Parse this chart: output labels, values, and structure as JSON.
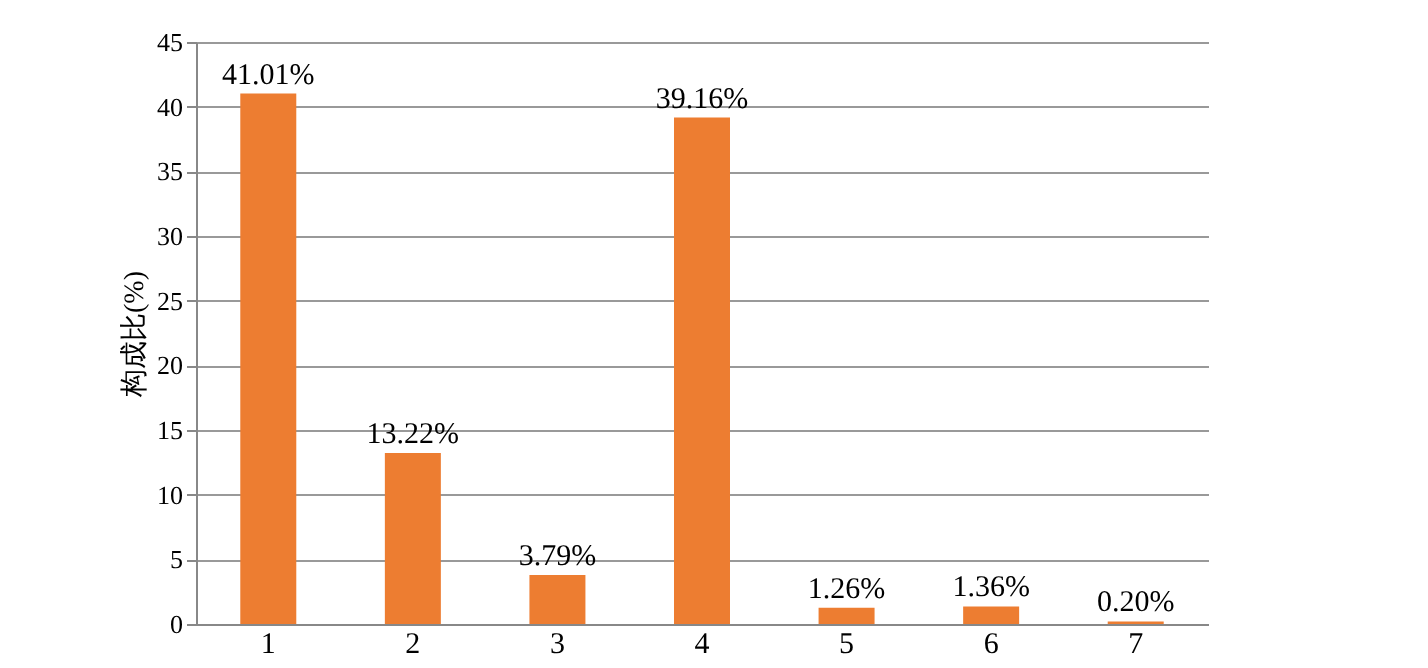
{
  "chart_data": {
    "type": "bar",
    "ylabel": "构成比(%)",
    "categories": [
      "1",
      "2",
      "3",
      "4",
      "5",
      "6",
      "7"
    ],
    "values": [
      41.01,
      13.22,
      3.79,
      39.16,
      1.26,
      1.36,
      0.2
    ],
    "value_labels": [
      "41.01%",
      "13.22%",
      "3.79%",
      "39.16%",
      "1.26%",
      "1.36%",
      "0.20%"
    ],
    "color": "#ed7d31",
    "ylim": [
      0,
      45
    ],
    "yticks": [
      0,
      5,
      10,
      15,
      20,
      25,
      30,
      35,
      40,
      45
    ],
    "grid": "y"
  }
}
